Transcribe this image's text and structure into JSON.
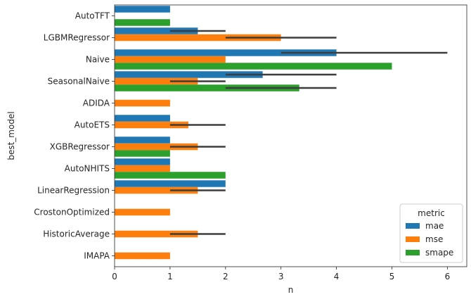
{
  "chart_data": {
    "type": "bar",
    "orientation": "horizontal",
    "title": "",
    "xlabel": "n",
    "ylabel": "best_model",
    "xlim": [
      0,
      6.35
    ],
    "xticks": [
      0,
      1,
      2,
      3,
      4,
      5,
      6
    ],
    "categories": [
      "AutoTFT",
      "LGBMRegressor",
      "Naive",
      "SeasonalNaive",
      "ADIDA",
      "AutoETS",
      "XGBRegressor",
      "AutoNHITS",
      "LinearRegression",
      "CrostonOptimized",
      "HistoricAverage",
      "IMAPA"
    ],
    "legend": {
      "title": "metric",
      "position": "lower-right"
    },
    "grid": false,
    "series": [
      {
        "name": "mae",
        "color": "#1f77b4",
        "values": [
          1,
          1.5,
          4,
          2.67,
          null,
          1,
          1,
          1,
          2,
          null,
          null,
          null
        ],
        "ci": [
          null,
          [
            1,
            2
          ],
          [
            3,
            6
          ],
          [
            2,
            4
          ],
          null,
          null,
          null,
          null,
          null,
          null,
          null,
          null
        ]
      },
      {
        "name": "mse",
        "color": "#ff7f0e",
        "values": [
          null,
          3,
          2,
          1.5,
          1,
          1.33,
          1.5,
          1,
          1.5,
          1,
          1.5,
          1
        ],
        "ci": [
          null,
          [
            2,
            4
          ],
          null,
          [
            1,
            2
          ],
          null,
          [
            1,
            2
          ],
          [
            1,
            2
          ],
          null,
          [
            1,
            2
          ],
          null,
          [
            1,
            2
          ],
          null
        ]
      },
      {
        "name": "smape",
        "color": "#2ca02c",
        "values": [
          1,
          null,
          5,
          3.33,
          null,
          null,
          1,
          2,
          null,
          null,
          null,
          null
        ],
        "ci": [
          null,
          null,
          null,
          [
            2,
            4
          ],
          null,
          null,
          null,
          null,
          null,
          null,
          null,
          null
        ]
      }
    ]
  }
}
